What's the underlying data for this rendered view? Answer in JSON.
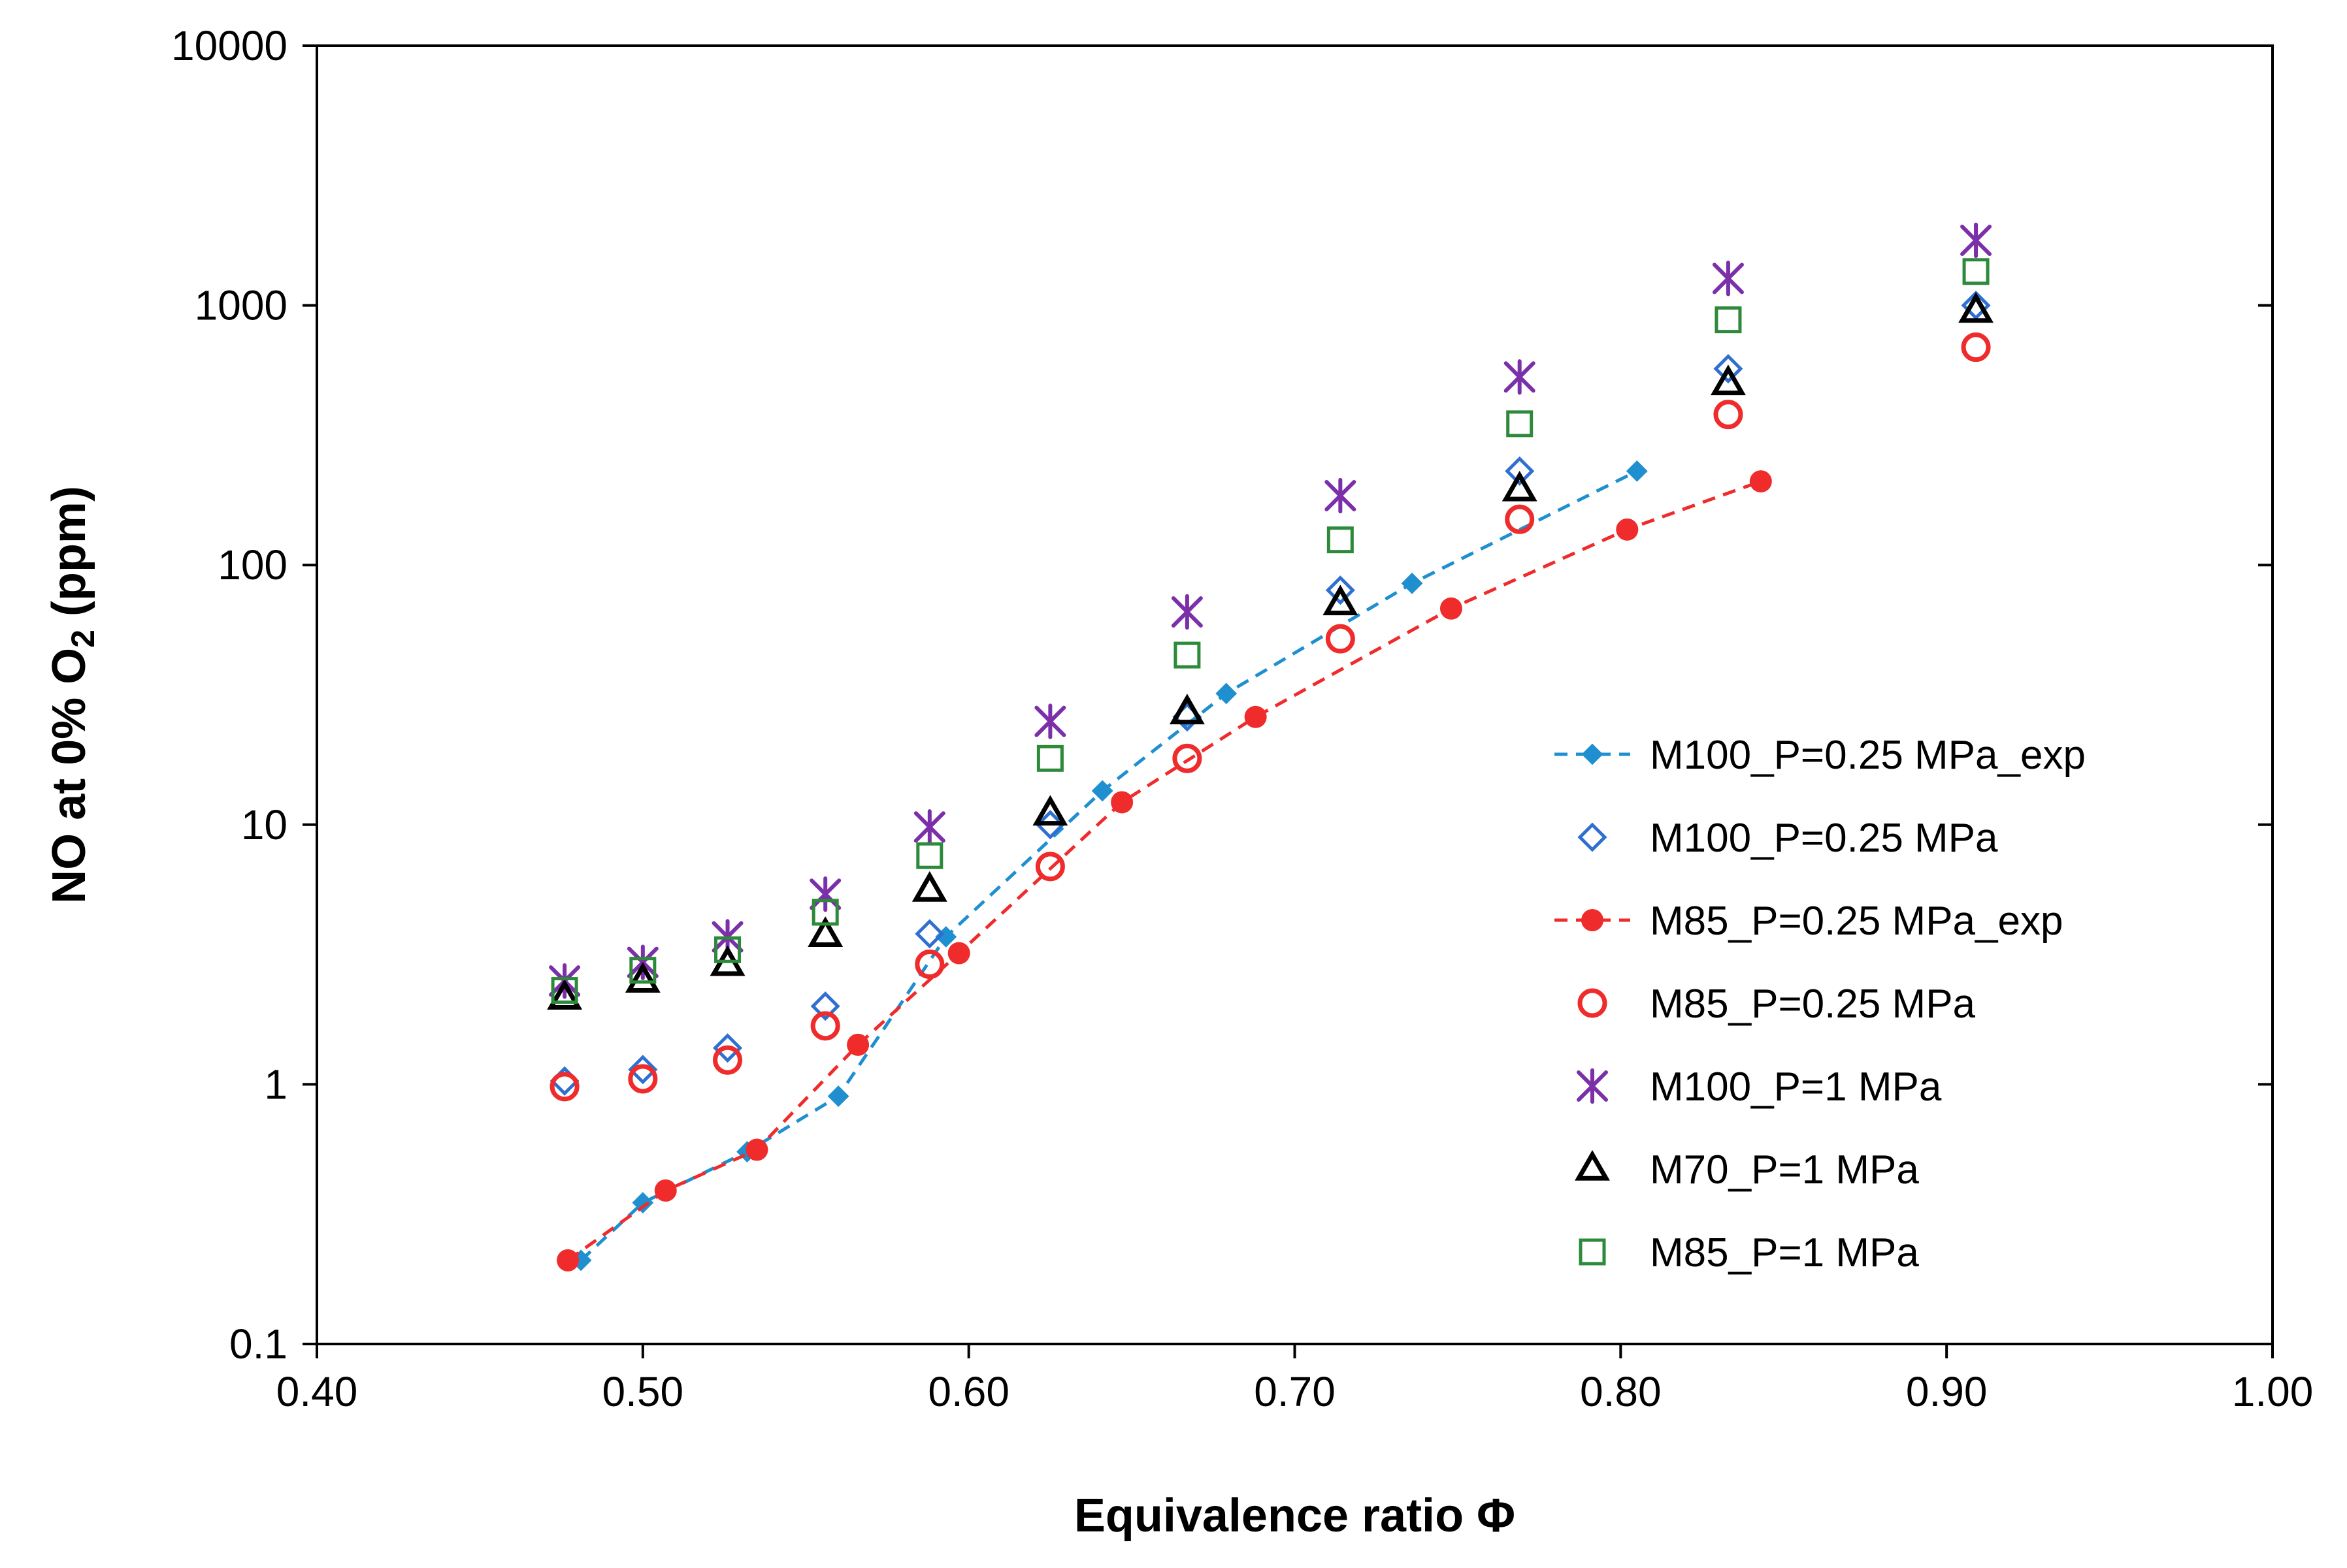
{
  "chart_data": {
    "type": "scatter",
    "title": "",
    "xlabel": "Equivalence ratio Φ",
    "ylabel_main": "NO at 0% O",
    "ylabel_sub": "2",
    "ylabel_tail": " (ppm)",
    "xlim": [
      0.4,
      1.0
    ],
    "ylim": [
      0.1,
      10000
    ],
    "yscale": "log",
    "x_ticks": [
      0.4,
      0.5,
      0.6,
      0.7,
      0.8,
      0.9,
      1.0
    ],
    "x_tick_labels": [
      "0.40",
      "0.50",
      "0.60",
      "0.70",
      "0.80",
      "0.90",
      "1.00"
    ],
    "y_ticks": [
      0.1,
      1,
      10,
      100,
      1000,
      10000
    ],
    "y_tick_labels": [
      "0.1",
      "1",
      "10",
      "100",
      "1000",
      "10000"
    ],
    "grid": false,
    "legend_position": "center-right",
    "series": [
      {
        "name": "M100_P=0.25 MPa_exp",
        "marker": "diamond-filled",
        "line": "dashed",
        "color": "#1f8fcf",
        "x": [
          0.481,
          0.5,
          0.532,
          0.56,
          0.593,
          0.641,
          0.679,
          0.736,
          0.805
        ],
        "y": [
          0.21,
          0.35,
          0.55,
          0.9,
          3.7,
          13.5,
          32,
          85,
          230
        ]
      },
      {
        "name": "M100_P=0.25 MPa",
        "marker": "diamond-open",
        "line": "none",
        "color": "#2e6fd0",
        "x": [
          0.476,
          0.5,
          0.526,
          0.556,
          0.588,
          0.625,
          0.667,
          0.714,
          0.769,
          0.833,
          0.909
        ],
        "y": [
          1.03,
          1.14,
          1.38,
          2.0,
          3.8,
          10,
          26,
          80,
          230,
          570,
          1000
        ]
      },
      {
        "name": "M85_P=0.25 MPa_exp",
        "marker": "circle-filled",
        "line": "dashed",
        "color": "#ef2b2b",
        "x": [
          0.477,
          0.507,
          0.535,
          0.566,
          0.597,
          0.647,
          0.688,
          0.748,
          0.802,
          0.843
        ],
        "y": [
          0.21,
          0.39,
          0.56,
          1.42,
          3.2,
          12.2,
          26,
          68,
          137,
          210
        ]
      },
      {
        "name": "M85_P=0.25 MPa",
        "marker": "circle-open",
        "line": "none",
        "color": "#ef2b2b",
        "x": [
          0.476,
          0.5,
          0.526,
          0.556,
          0.588,
          0.625,
          0.667,
          0.714,
          0.769,
          0.833,
          0.909
        ],
        "y": [
          0.98,
          1.05,
          1.24,
          1.68,
          2.9,
          6.9,
          18,
          52,
          150,
          380,
          690
        ]
      },
      {
        "name": "M100_P=1 MPa",
        "marker": "asterisk",
        "line": "none",
        "color": "#7b2fa8",
        "x": [
          0.476,
          0.5,
          0.526,
          0.556,
          0.588,
          0.625,
          0.667,
          0.714,
          0.769,
          0.833,
          0.909
        ],
        "y": [
          2.5,
          2.95,
          3.7,
          5.4,
          9.8,
          25,
          66,
          185,
          530,
          1270,
          1780
        ]
      },
      {
        "name": "M70_P=1 MPa",
        "marker": "triangle-open",
        "line": "none",
        "color": "#000000",
        "x": [
          0.476,
          0.5,
          0.526,
          0.556,
          0.588,
          0.625,
          0.667,
          0.714,
          0.769,
          0.833,
          0.909
        ],
        "y": [
          2.15,
          2.5,
          2.9,
          3.75,
          5.6,
          11,
          27,
          71,
          195,
          500,
          950
        ]
      },
      {
        "name": "M85_P=1 MPa",
        "marker": "square-open",
        "line": "none",
        "color": "#2d8a3a",
        "x": [
          0.476,
          0.5,
          0.526,
          0.556,
          0.588,
          0.625,
          0.667,
          0.714,
          0.769,
          0.833,
          0.909
        ],
        "y": [
          2.3,
          2.75,
          3.3,
          4.6,
          7.6,
          18,
          45,
          125,
          350,
          880,
          1350
        ]
      }
    ]
  }
}
